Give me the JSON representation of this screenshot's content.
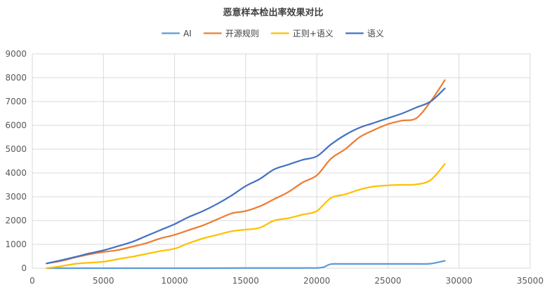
{
  "chart_data": {
    "type": "line",
    "title": "恶意样本检出率效果对比",
    "xlabel": "",
    "ylabel": "",
    "xlim": [
      0,
      35000
    ],
    "ylim": [
      0,
      9000
    ],
    "x_ticks": [
      "0",
      "5000",
      "10000",
      "15000",
      "20000",
      "25000",
      "30000",
      "35000"
    ],
    "y_ticks": [
      "0",
      "1000",
      "2000",
      "3000",
      "4000",
      "5000",
      "6000",
      "7000",
      "8000",
      "9000"
    ],
    "grid": true,
    "legend_position": "top",
    "series": [
      {
        "name": "AI",
        "color": "#5B9BD5",
        "points": [
          [
            1000,
            0
          ],
          [
            5000,
            0
          ],
          [
            10000,
            0
          ],
          [
            15000,
            5
          ],
          [
            19000,
            10
          ],
          [
            20000,
            10
          ],
          [
            20500,
            50
          ],
          [
            21000,
            170
          ],
          [
            22000,
            180
          ],
          [
            25000,
            180
          ],
          [
            27000,
            180
          ],
          [
            28000,
            190
          ],
          [
            29000,
            310
          ]
        ]
      },
      {
        "name": "开源规则",
        "color": "#ED7D31",
        "points": [
          [
            1000,
            200
          ],
          [
            2000,
            300
          ],
          [
            3000,
            450
          ],
          [
            4000,
            580
          ],
          [
            5000,
            680
          ],
          [
            6000,
            760
          ],
          [
            7000,
            900
          ],
          [
            8000,
            1050
          ],
          [
            9000,
            1250
          ],
          [
            10000,
            1400
          ],
          [
            11000,
            1600
          ],
          [
            12000,
            1800
          ],
          [
            13000,
            2050
          ],
          [
            14000,
            2300
          ],
          [
            15000,
            2400
          ],
          [
            16000,
            2600
          ],
          [
            17000,
            2900
          ],
          [
            18000,
            3200
          ],
          [
            19000,
            3600
          ],
          [
            20000,
            3900
          ],
          [
            21000,
            4600
          ],
          [
            22000,
            5000
          ],
          [
            23000,
            5500
          ],
          [
            24000,
            5800
          ],
          [
            25000,
            6050
          ],
          [
            26000,
            6200
          ],
          [
            27000,
            6300
          ],
          [
            28000,
            7000
          ],
          [
            29000,
            7900
          ]
        ]
      },
      {
        "name": "正则+语义",
        "color": "#FFC000",
        "points": [
          [
            1000,
            0
          ],
          [
            2000,
            80
          ],
          [
            3000,
            180
          ],
          [
            4000,
            230
          ],
          [
            5000,
            270
          ],
          [
            6000,
            380
          ],
          [
            7000,
            480
          ],
          [
            8000,
            600
          ],
          [
            9000,
            720
          ],
          [
            10000,
            820
          ],
          [
            11000,
            1050
          ],
          [
            12000,
            1250
          ],
          [
            13000,
            1400
          ],
          [
            14000,
            1550
          ],
          [
            15000,
            1620
          ],
          [
            16000,
            1700
          ],
          [
            17000,
            2000
          ],
          [
            18000,
            2100
          ],
          [
            19000,
            2250
          ],
          [
            20000,
            2400
          ],
          [
            21000,
            2950
          ],
          [
            22000,
            3100
          ],
          [
            23000,
            3300
          ],
          [
            24000,
            3430
          ],
          [
            25000,
            3480
          ],
          [
            26000,
            3500
          ],
          [
            27000,
            3520
          ],
          [
            28000,
            3700
          ],
          [
            29000,
            4380
          ]
        ]
      },
      {
        "name": "语义",
        "color": "#4472C4",
        "points": [
          [
            1000,
            200
          ],
          [
            2000,
            330
          ],
          [
            3000,
            470
          ],
          [
            4000,
            620
          ],
          [
            5000,
            750
          ],
          [
            6000,
            920
          ],
          [
            7000,
            1100
          ],
          [
            8000,
            1350
          ],
          [
            9000,
            1600
          ],
          [
            10000,
            1850
          ],
          [
            11000,
            2150
          ],
          [
            12000,
            2400
          ],
          [
            13000,
            2700
          ],
          [
            14000,
            3050
          ],
          [
            15000,
            3450
          ],
          [
            16000,
            3750
          ],
          [
            17000,
            4150
          ],
          [
            18000,
            4350
          ],
          [
            19000,
            4550
          ],
          [
            20000,
            4700
          ],
          [
            21000,
            5200
          ],
          [
            22000,
            5600
          ],
          [
            23000,
            5900
          ],
          [
            24000,
            6100
          ],
          [
            25000,
            6300
          ],
          [
            26000,
            6500
          ],
          [
            27000,
            6750
          ],
          [
            28000,
            7000
          ],
          [
            29000,
            7550
          ]
        ]
      }
    ]
  }
}
